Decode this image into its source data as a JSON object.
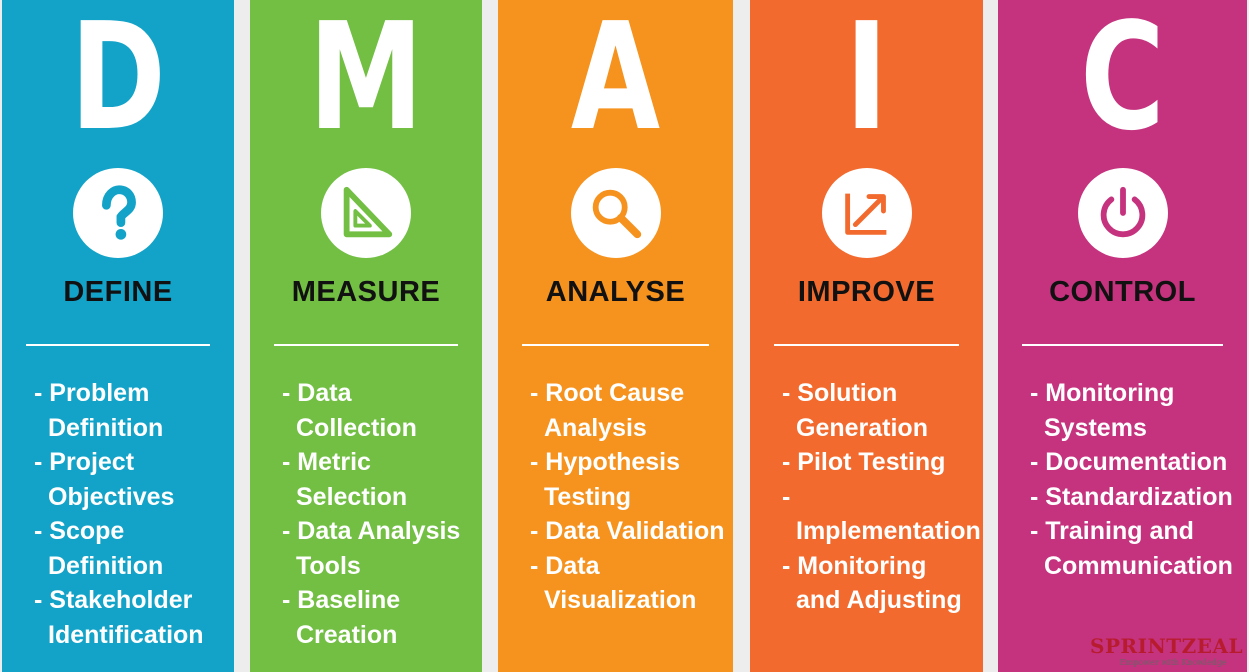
{
  "columns": [
    {
      "letter": "D",
      "title": "DEFINE",
      "icon": "question-icon",
      "color": "#13a3c8",
      "items": [
        "Problem Definition",
        "Project Objectives",
        "Scope Definition",
        "Stakeholder Identification"
      ]
    },
    {
      "letter": "M",
      "title": "MEASURE",
      "icon": "triangle-ruler-icon",
      "color": "#72bf44",
      "items": [
        "Data Collection",
        "Metric Selection",
        "Data Analysis Tools",
        "Baseline Creation"
      ]
    },
    {
      "letter": "A",
      "title": "ANALYSE",
      "icon": "magnifier-icon",
      "color": "#f6921e",
      "items": [
        "Root Cause Analysis",
        "Hypothesis Testing",
        "Data Validation",
        "Data Visualization"
      ]
    },
    {
      "letter": "I",
      "title": "IMPROVE",
      "icon": "trend-arrow-icon",
      "color": "#f26a2e",
      "items": [
        "Solution Generation",
        "Pilot Testing",
        "Implementation",
        "Monitoring and Adjusting"
      ]
    },
    {
      "letter": "C",
      "title": "CONTROL",
      "icon": "power-icon",
      "color": "#c5327e",
      "items": [
        "Monitoring Systems",
        "Documentation",
        "Standardization",
        "Training and Communication"
      ]
    }
  ],
  "logo": {
    "text": "SPRINTZEAL",
    "tagline": "Empower with Knowledge"
  }
}
